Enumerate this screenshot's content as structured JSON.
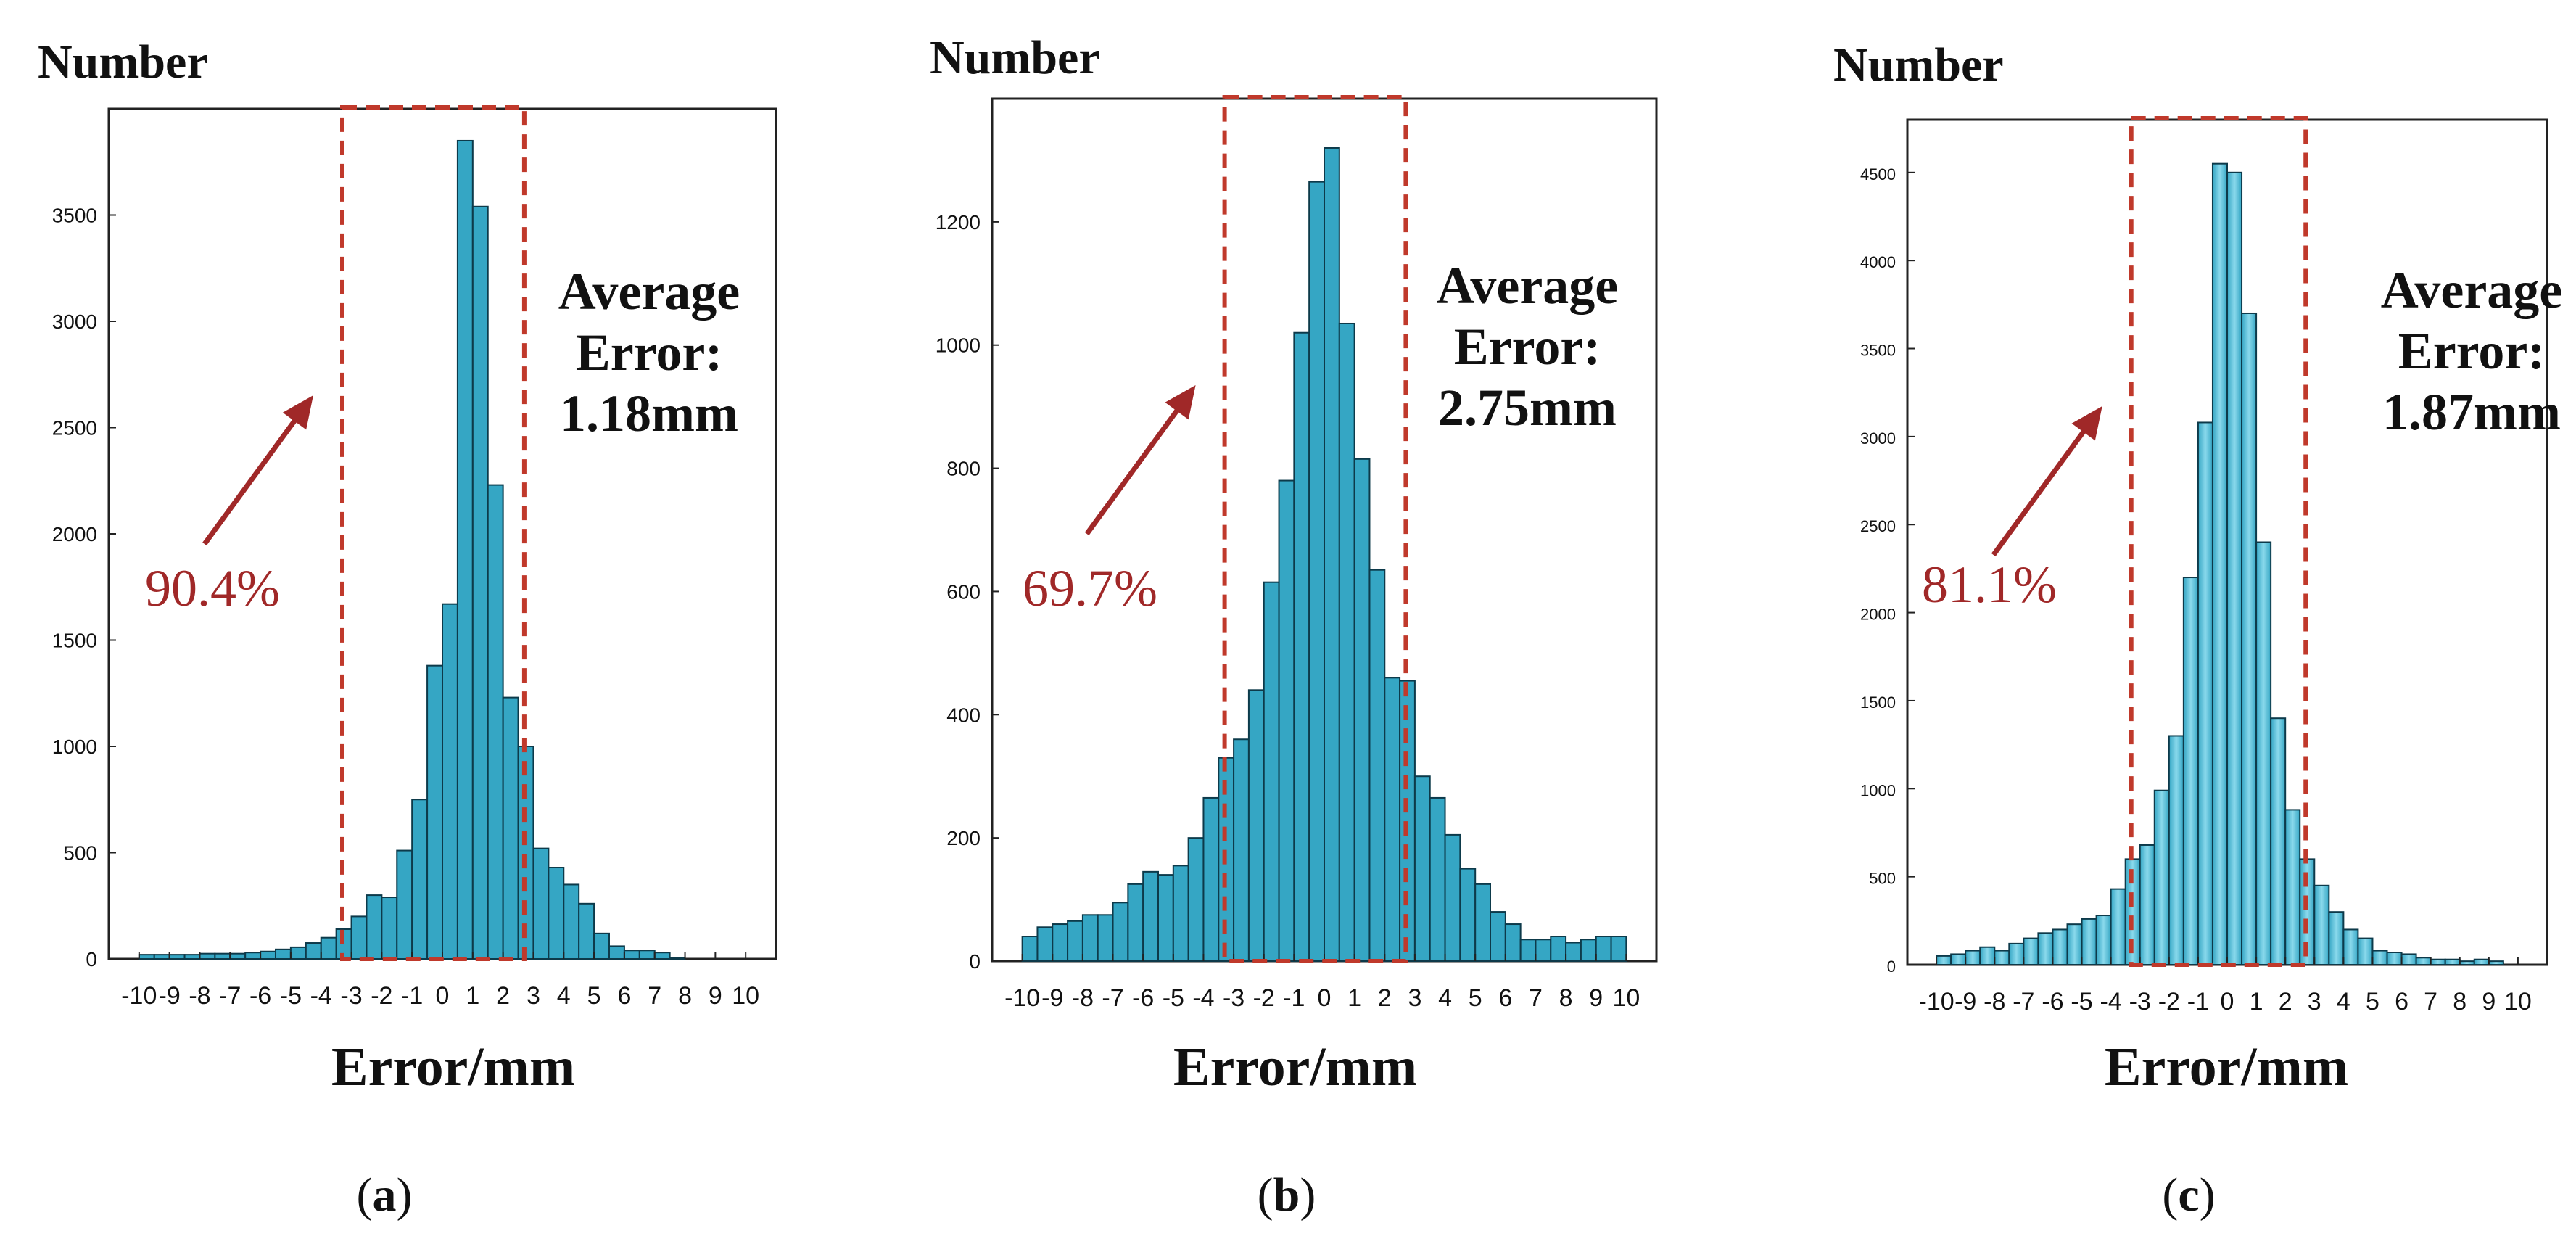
{
  "colors": {
    "bar": "#35a6c4",
    "bar_stroke": "#0d3a4a",
    "bar_alt": "#8ad9ec",
    "box": "#c0392b",
    "arrow": "#a02828",
    "highlight_text": "#a02828"
  },
  "chart_data": [
    {
      "type": "bar",
      "id": "a",
      "title": "",
      "ylabel": "Number",
      "xlabel": "Error/mm",
      "panel_label": "a",
      "bin_width": 0.5,
      "x_start": -10,
      "xlim": [
        -11,
        11
      ],
      "ylim": [
        0,
        4000
      ],
      "xticks": [
        -10,
        -9,
        -8,
        -7,
        -6,
        -5,
        -4,
        -3,
        -2,
        -1,
        0,
        1,
        2,
        3,
        4,
        5,
        6,
        7,
        8,
        9,
        10
      ],
      "yticks": [
        0,
        500,
        1000,
        1500,
        2000,
        2500,
        3000,
        3500
      ],
      "values": [
        20,
        20,
        20,
        20,
        25,
        25,
        25,
        30,
        35,
        45,
        55,
        75,
        100,
        140,
        200,
        300,
        290,
        510,
        750,
        1380,
        1670,
        3850,
        3540,
        2230,
        1230,
        1000,
        520,
        430,
        350,
        260,
        120,
        60,
        40,
        40,
        30,
        5,
        0,
        0,
        0,
        0
      ],
      "highlight_range": [
        -3.3,
        2.7
      ],
      "highlight_percent": "90.4%",
      "avg_lines": [
        "Average",
        "Error:",
        "1.18mm"
      ]
    },
    {
      "type": "bar",
      "id": "b",
      "title": "",
      "ylabel": "Number",
      "xlabel": "Error/mm",
      "panel_label": "b",
      "bin_width": 0.5,
      "x_start": -10,
      "xlim": [
        -11,
        11
      ],
      "ylim": [
        0,
        1400
      ],
      "xticks": [
        -10,
        -9,
        -8,
        -7,
        -6,
        -5,
        -4,
        -3,
        -2,
        -1,
        0,
        1,
        2,
        3,
        4,
        5,
        6,
        7,
        8,
        9,
        10
      ],
      "yticks": [
        0,
        200,
        400,
        600,
        800,
        1000,
        1200
      ],
      "values": [
        40,
        55,
        60,
        65,
        75,
        75,
        95,
        125,
        145,
        140,
        155,
        200,
        265,
        330,
        360,
        440,
        615,
        780,
        1020,
        1265,
        1320,
        1035,
        815,
        635,
        460,
        455,
        300,
        265,
        205,
        150,
        125,
        80,
        60,
        35,
        35,
        40,
        30,
        35,
        40,
        40
      ],
      "highlight_range": [
        -3.3,
        2.7
      ],
      "highlight_percent": "69.7%",
      "avg_lines": [
        "Average",
        "Error:",
        "2.75mm"
      ]
    },
    {
      "type": "bar",
      "id": "c",
      "title": "",
      "ylabel": "Number",
      "xlabel": "Error/mm",
      "panel_label": "c",
      "bin_width": 0.5,
      "x_start": -10,
      "xlim": [
        -11,
        11
      ],
      "ylim": [
        0,
        4800
      ],
      "xticks": [
        -10,
        -9,
        -8,
        -7,
        -6,
        -5,
        -4,
        -3,
        -2,
        -1,
        0,
        1,
        2,
        3,
        4,
        5,
        6,
        7,
        8,
        9,
        10
      ],
      "yticks": [
        0,
        500,
        1000,
        1500,
        2000,
        2500,
        3000,
        3500,
        4000,
        4500
      ],
      "values": [
        50,
        60,
        80,
        100,
        80,
        120,
        150,
        180,
        200,
        230,
        260,
        280,
        430,
        600,
        680,
        990,
        1300,
        2200,
        3080,
        4550,
        4500,
        3700,
        2400,
        1400,
        880,
        600,
        450,
        300,
        200,
        150,
        80,
        70,
        60,
        40,
        30,
        30,
        20,
        30,
        20,
        0
      ],
      "highlight_range": [
        -3.3,
        2.7
      ],
      "highlight_percent": "81.1%",
      "avg_lines": [
        "Average",
        "Error:",
        "1.87mm"
      ]
    }
  ]
}
